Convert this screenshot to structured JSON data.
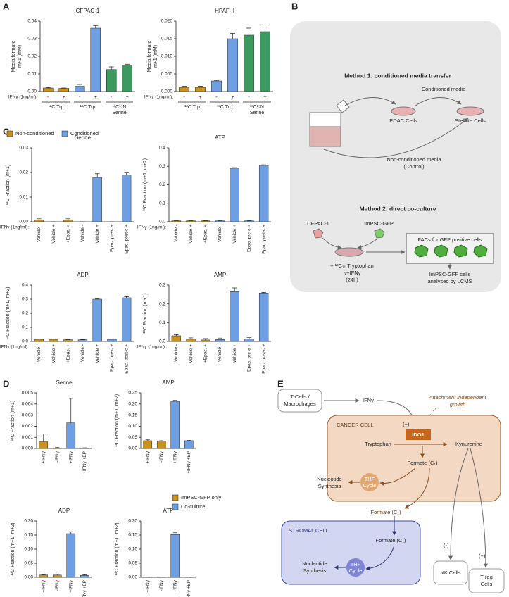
{
  "panel_labels": [
    "A",
    "B",
    "C",
    "D",
    "E"
  ],
  "chart_data": [
    {
      "type": "bar",
      "title": "CFPAC-1",
      "y_label": [
        "Media formate",
        "m+1 (mM)"
      ],
      "x_row_label": "IFNγ (1ng/ml):",
      "categories": [
        "-",
        "+",
        "-",
        "+",
        "-",
        "+"
      ],
      "groups": [
        [
          "¹²C Trp"
        ],
        [
          "¹³C Trp"
        ],
        [
          "¹³C¹⁵N",
          "Serine"
        ]
      ],
      "values": [
        0.002,
        0.0018,
        0.003,
        0.036,
        0.0125,
        0.015
      ],
      "errors": [
        0.0003,
        0.0002,
        0.001,
        0.0015,
        0.0015,
        0.0005
      ],
      "colors": [
        "#c8921d",
        "#c8921d",
        "#6e9fe3",
        "#6e9fe3",
        "#3c9a5f",
        "#3c9a5f"
      ],
      "ylim": [
        0,
        0.04
      ],
      "yticks": [
        {
          "value": 0,
          "label": "0.00"
        },
        0.01,
        0.02,
        0.03,
        0.04
      ]
    },
    {
      "type": "bar",
      "title": "HPAF-II",
      "y_label": [
        "Media formate",
        "m+1 (mM)"
      ],
      "x_row_label": "IFNγ (1ng/ml):",
      "categories": [
        "-",
        "+",
        "-",
        "+",
        "-",
        "+"
      ],
      "groups": [
        [
          "¹²C Trp"
        ],
        [
          "¹³C Trp"
        ],
        [
          "¹³C¹⁵N",
          "Serine"
        ]
      ],
      "values": [
        0.0012,
        0.0012,
        0.003,
        0.015,
        0.016,
        0.017
      ],
      "errors": [
        0.0003,
        0.0003,
        0.0002,
        0.0015,
        0.002,
        0.0025
      ],
      "colors": [
        "#c8921d",
        "#c8921d",
        "#6e9fe3",
        "#6e9fe3",
        "#3c9a5f",
        "#3c9a5f"
      ],
      "ylim": [
        0,
        0.02
      ],
      "yticks": [
        {
          "value": 0,
          "label": "0.000"
        },
        0.005,
        {
          "value": 0.01,
          "label": "0.010"
        },
        0.015,
        {
          "value": 0.02,
          "label": "0.020"
        }
      ]
    },
    {
      "type": "bar",
      "title": "Serine",
      "y_label": "¹³C Fraction (m+1)",
      "x_row_label": "IFNγ (1ng/ml):",
      "categories": [
        "Vehicle -",
        "Vehicle +",
        "+Epac. +",
        "Vehicle -",
        "Vehicle +",
        "Epac. pre-c +",
        "Epac. post-c +"
      ],
      "series": [
        {
          "name": "Non-conditioned",
          "color": "#c8921d",
          "values": [
            0.0008,
            0,
            0.0008,
            null,
            null,
            null,
            null
          ],
          "errors": [
            0.0004,
            0,
            0.0004,
            null,
            null,
            null,
            null
          ]
        },
        {
          "name": "Conditioned",
          "color": "#6e9fe3",
          "values": [
            null,
            null,
            null,
            0,
            0.018,
            0,
            0.019
          ],
          "errors": [
            null,
            null,
            null,
            0,
            0.0015,
            0,
            0.0008
          ]
        }
      ],
      "ylim": [
        0,
        0.03
      ],
      "yticks": [
        {
          "value": 0,
          "label": "0.00"
        },
        0.01,
        0.02,
        0.03
      ]
    },
    {
      "type": "bar",
      "title": "ATP",
      "y_label": "¹³C Fraction (m+1, m+2)",
      "x_row_label": "IFNγ (1ng/ml):",
      "categories": [
        "Vehicle -",
        "Vehicle +",
        "+Epac. +",
        "Vehicle -",
        "Vehicle +",
        "Epac. pre-c +",
        "Epac. post-c +"
      ],
      "series": [
        {
          "name": "Non-conditioned",
          "color": "#c8921d",
          "values": [
            0.005,
            0.005,
            0.005,
            null,
            null,
            null,
            null
          ],
          "errors": [
            0.001,
            0.001,
            0.001,
            null,
            null,
            null,
            null
          ]
        },
        {
          "name": "Conditioned",
          "color": "#6e9fe3",
          "values": [
            null,
            null,
            null,
            0.005,
            0.29,
            0.005,
            0.305
          ],
          "errors": [
            null,
            null,
            null,
            0.001,
            0.003,
            0.001,
            0.003
          ]
        }
      ],
      "ylim": [
        0,
        0.4
      ],
      "yticks": [
        {
          "value": 0,
          "label": "0.0"
        },
        0.1,
        0.2,
        0.3,
        0.4
      ]
    },
    {
      "type": "bar",
      "title": "ADP",
      "y_label": "¹³C Fraction (m+1, m+2)",
      "x_row_label": "IFNγ (1ng/ml):",
      "categories": [
        "Vehicle -",
        "Vehicle +",
        "+Epac. +",
        "Vehicle -",
        "Vehicle +",
        "Epac. pre-c +",
        "Epac. post-c +"
      ],
      "series": [
        {
          "name": "Non-conditioned",
          "color": "#c8921d",
          "values": [
            0.015,
            0.015,
            0.012,
            null,
            null,
            null,
            null
          ],
          "errors": [
            0.002,
            0.002,
            0.002,
            null,
            null,
            null,
            null
          ]
        },
        {
          "name": "Conditioned",
          "color": "#6e9fe3",
          "values": [
            null,
            null,
            null,
            0.012,
            0.3,
            0.015,
            0.31
          ],
          "errors": [
            null,
            null,
            null,
            0.001,
            0.004,
            0.002,
            0.008
          ]
        }
      ],
      "ylim": [
        0,
        0.4
      ],
      "yticks": [
        {
          "value": 0,
          "label": "0.0"
        },
        0.1,
        0.2,
        0.3,
        0.4
      ]
    },
    {
      "type": "bar",
      "title": "AMP",
      "y_label": "¹³C Fraction (m+1)",
      "x_row_label": "IFNγ (1ng/ml):",
      "categories": [
        "Vehicle -",
        "Vehicle +",
        "+Epac. +",
        "Vehicle -",
        "Vehicle +",
        "Epac. pre-c +",
        "Epac. post-c +"
      ],
      "series": [
        {
          "name": "Non-conditioned",
          "color": "#c8921d",
          "values": [
            0.03,
            0.012,
            0.008,
            null,
            null,
            null,
            null
          ],
          "errors": [
            0.006,
            0.007,
            0.007,
            null,
            null,
            null,
            null
          ]
        },
        {
          "name": "Conditioned",
          "color": "#6e9fe3",
          "values": [
            null,
            null,
            null,
            0.01,
            0.265,
            0.012,
            0.258
          ],
          "errors": [
            null,
            null,
            null,
            0.008,
            0.02,
            0.008,
            0.003
          ]
        }
      ],
      "ylim": [
        0,
        0.3
      ],
      "yticks": [
        {
          "value": 0,
          "label": "0.0"
        },
        0.1,
        0.2,
        0.3
      ]
    },
    {
      "type": "bar",
      "title": "Serine",
      "y_label": "¹³C Fraction (m+1)",
      "categories": [
        "+IFNγ",
        "-IFNγ",
        "+IFNγ",
        "+IFNγ +EP"
      ],
      "series": [
        {
          "name": "ImPSC-GFP only",
          "color": "#c8921d",
          "values": [
            0.0006,
            5e-05,
            null,
            null
          ],
          "errors": [
            0.0007,
            5e-05,
            null,
            null
          ]
        },
        {
          "name": "Co-culture",
          "color": "#6e9fe3",
          "values": [
            null,
            null,
            0.0023,
            3e-05
          ],
          "errors": [
            null,
            null,
            0.0022,
            3e-05
          ]
        }
      ],
      "ylim": [
        0,
        0.005
      ],
      "yticks": [
        {
          "value": 0,
          "label": "0.000"
        },
        0.001,
        0.002,
        0.003,
        0.004,
        0.005
      ]
    },
    {
      "type": "bar",
      "title": "AMP",
      "y_label": "¹³C Fraction (m+1, m+2)",
      "categories": [
        "+IFNγ",
        "-IFNγ",
        "+IFNγ",
        "+IFNγ +EP"
      ],
      "series": [
        {
          "name": "ImPSC-GFP only",
          "color": "#c8921d",
          "values": [
            0.035,
            0.033,
            null,
            null
          ],
          "errors": [
            0.004,
            0.002,
            null,
            null
          ]
        },
        {
          "name": "Co-culture",
          "color": "#6e9fe3",
          "values": [
            null,
            null,
            0.212,
            0.035
          ],
          "errors": [
            null,
            null,
            0.004,
            0.001
          ]
        }
      ],
      "ylim": [
        0,
        0.25
      ],
      "yticks": [
        {
          "value": 0,
          "label": "0.00"
        },
        0.05,
        {
          "value": 0.1,
          "label": "0.10"
        },
        0.15,
        {
          "value": 0.2,
          "label": "0.20"
        },
        0.25
      ]
    },
    {
      "type": "bar",
      "title": "ADP",
      "y_label": "¹³C Fraction (m+1, m+2)",
      "categories": [
        "+IFNγ",
        "-IFNγ",
        "+IFNγ",
        "+IFNγ +EP"
      ],
      "series": [
        {
          "name": "ImPSC-GFP only",
          "color": "#c8921d",
          "values": [
            0.008,
            0.008,
            null,
            null
          ],
          "errors": [
            0.002,
            0.003,
            null,
            null
          ]
        },
        {
          "name": "Co-culture",
          "color": "#6e9fe3",
          "values": [
            null,
            null,
            0.155,
            0.007
          ],
          "errors": [
            null,
            null,
            0.007,
            0.002
          ]
        }
      ],
      "ylim": [
        0,
        0.2
      ],
      "yticks": [
        {
          "value": 0,
          "label": "0.00"
        },
        0.05,
        {
          "value": 0.1,
          "label": "0.10"
        },
        0.15,
        {
          "value": 0.2,
          "label": "0.20"
        }
      ]
    },
    {
      "type": "bar",
      "title": "ATP",
      "y_label": "¹³C Fraction (m+1, m+2)",
      "categories": [
        "+IFNγ",
        "-IFNγ",
        "+IFNγ",
        "+IFNγ +EP"
      ],
      "series": [
        {
          "name": "ImPSC-GFP only",
          "color": "#c8921d",
          "values": [
            0.001,
            0.001,
            null,
            null
          ],
          "errors": [
            0.0005,
            0.0005,
            null,
            null
          ]
        },
        {
          "name": "Co-culture",
          "color": "#6e9fe3",
          "values": [
            null,
            null,
            0.152,
            0.001
          ],
          "errors": [
            null,
            null,
            0.006,
            0.0005
          ]
        }
      ],
      "ylim": [
        0,
        0.2
      ],
      "yticks": [
        {
          "value": 0,
          "label": "0.00"
        },
        0.05,
        {
          "value": 0.1,
          "label": "0.10"
        },
        0.15,
        {
          "value": 0.2,
          "label": "0.20"
        }
      ]
    }
  ],
  "method_diagram": {
    "title1": "Method 1: conditioned media transfer",
    "conditioned_media": "Conditioned media",
    "pdac_cells": "PDAC Cells",
    "stellate_cells": "Stellate Cells",
    "non_conditioned": [
      "Non-conditioned media",
      "(Control)"
    ],
    "title2": "Method 2: direct co-culture",
    "cfpac": "CFPAC-1",
    "impsc": "ImPSC-GFP",
    "treatment": [
      "+ ¹³C₁₁ Tryptophan",
      "-/+IFNγ",
      "(24h)"
    ],
    "facs": "FACs for GFP positive cells",
    "result": [
      "ImPSC-GFP cells",
      "analysed by LCMS"
    ]
  },
  "pathway_diagram": {
    "t_cells": [
      "T-Cells /",
      "Macrophages"
    ],
    "ifng": "IFNγ",
    "attachment": [
      "Attachment independent",
      "growth"
    ],
    "cancer_cell": "CANCER CELL",
    "plus1": "(+)",
    "ido1": "IDO1",
    "tryptophan": "Tryptophan",
    "kynurenine": "Kynurenine",
    "formate_cancer": "Formate (C₁)",
    "thf_cancer": [
      "THF",
      "Cycle"
    ],
    "nucleotide_cancer": [
      "Nucleotide",
      "Synthesis"
    ],
    "formate_secreted": "Formate (C₁)",
    "stromal_cell": "STROMAL CELL",
    "formate_stromal": "Formate (C₁)",
    "thf_stromal": [
      "THF",
      "Cycle"
    ],
    "nucleotide_stromal": [
      "Nucleotide",
      "Synthesis"
    ],
    "minus": "(-)",
    "nk_cells": "NK Cells",
    "plus2": "(+)",
    "treg_cells": [
      "T-reg",
      "Cells"
    ]
  }
}
